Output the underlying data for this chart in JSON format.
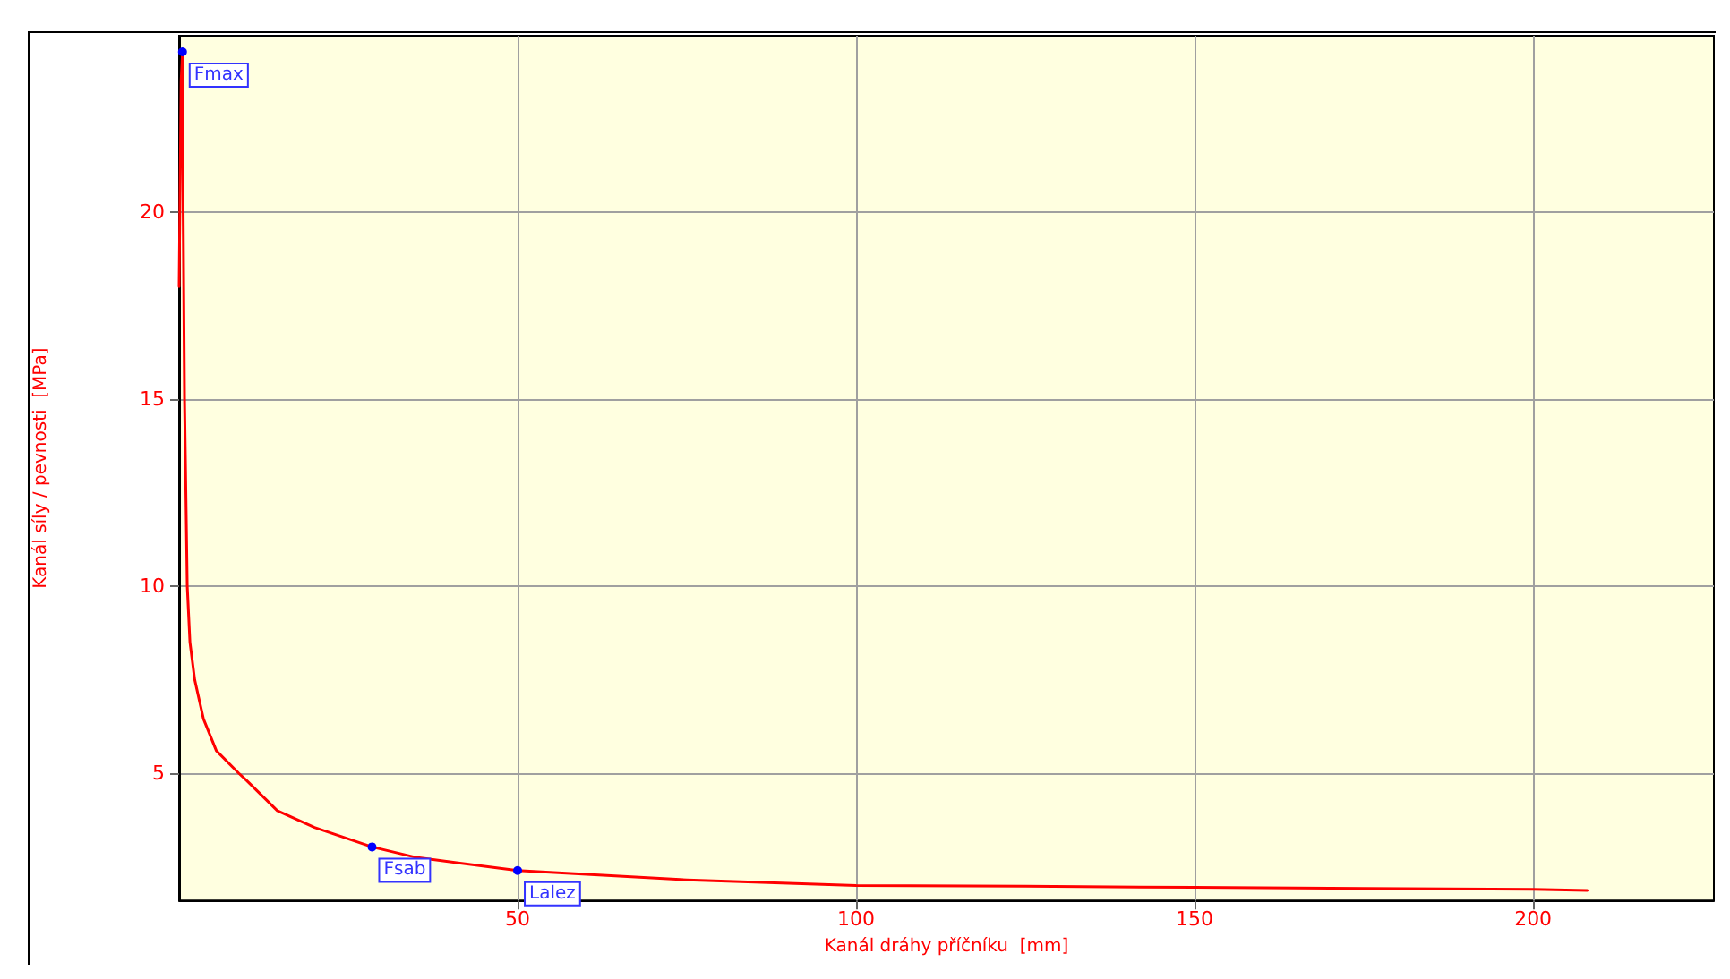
{
  "chart_data": {
    "type": "line",
    "xlabel": "Kanál dráhy příčníku  [mm]",
    "ylabel": "Kanál síly / pevnosti  [MPa]",
    "x": [
      0,
      0.3,
      0.5,
      0.6,
      0.8,
      1.2,
      1.6,
      2.3,
      3.6,
      5.5,
      8.8,
      10,
      14.5,
      20,
      28.5,
      35,
      50,
      75,
      100,
      125,
      150,
      175,
      200,
      208
    ],
    "series": [
      {
        "color": "#ff0000",
        "values": [
          18,
          23.5,
          24.27,
          20,
          15,
          10,
          8.5,
          7.5,
          6.45,
          5.6,
          5,
          4.8,
          4,
          3.55,
          3.03,
          2.75,
          2.4,
          2.15,
          2,
          1.98,
          1.95,
          1.92,
          1.9,
          1.87
        ]
      }
    ],
    "annotations": [
      {
        "text": "Fmax",
        "x": 0.5,
        "y": 24.27
      },
      {
        "text": "Fsab",
        "x": 28.5,
        "y": 3.03
      },
      {
        "text": "Lalez",
        "x": 50,
        "y": 2.4
      }
    ],
    "xlim": [
      0,
      226.7
    ],
    "xticks": [
      50,
      100,
      150,
      200
    ],
    "ylim": [
      1.6,
      24.7
    ],
    "yticks": [
      5,
      10,
      15,
      20
    ],
    "grid": true,
    "marker": "none",
    "line_style": "solid"
  }
}
